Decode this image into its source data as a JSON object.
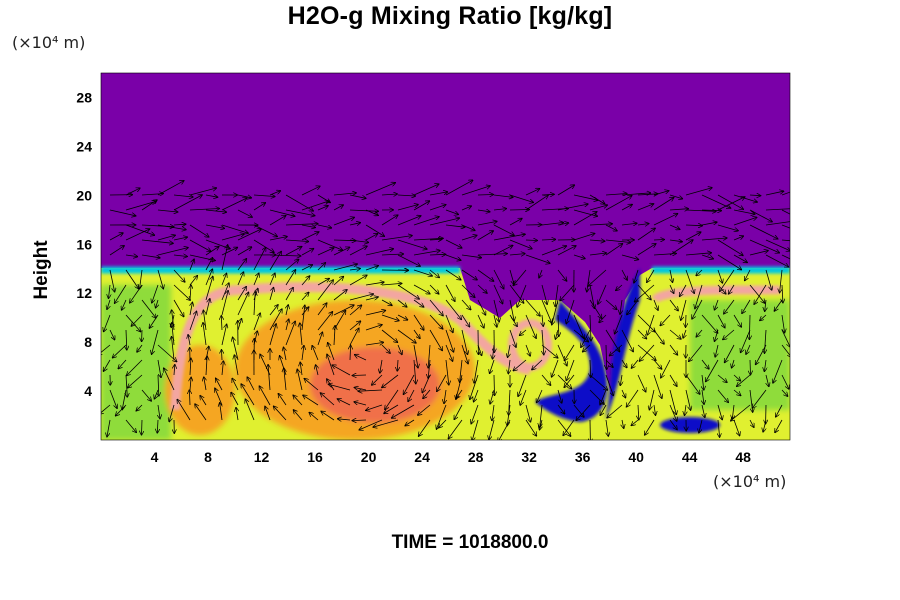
{
  "chart_data": {
    "type": "heatmap",
    "title": "H2O-g Mixing Ratio [kg/kg]",
    "xlabel": "",
    "ylabel": "Height",
    "x_unit": "(×10⁴ m)",
    "y_unit": "(×10⁴ m)",
    "xlim": [
      0,
      51.5
    ],
    "ylim": [
      0,
      30
    ],
    "x_ticks": [
      4,
      8,
      12,
      16,
      20,
      24,
      28,
      32,
      36,
      40,
      44,
      48
    ],
    "y_ticks": [
      4,
      8,
      12,
      16,
      20,
      24,
      28
    ],
    "background_color": "#7a00a8",
    "overlay": "wind vector arrows",
    "footer": "TIME = 1018800.0",
    "colors": {
      "upper": "#7a00a8",
      "moist": "#e0f030",
      "mid": "#8fdc3a",
      "warm": "#f5a623",
      "hot": "#f07048",
      "pink": "#f3a6a0",
      "dry_blue": "#1010c8",
      "edge_cyan": "#00c8e0"
    }
  }
}
